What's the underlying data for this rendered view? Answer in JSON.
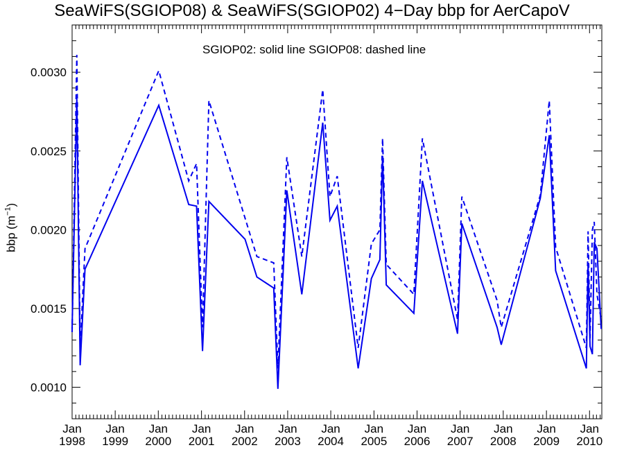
{
  "chart_data": {
    "type": "line",
    "title": "SeaWiFS(SGIOP08) & SeaWiFS(SGIOP02) 4−Day bbp for AerCapoV",
    "annotation": "SGIOP02: solid line   SGIOP08: dashed line",
    "ylabel_main": "bbp (m",
    "ylabel_sup": "−1",
    "ylabel_close": ")",
    "ylim": [
      0.0008,
      0.0033
    ],
    "xlim": [
      "1998-01-01",
      "2010-04-15"
    ],
    "yticks": [
      {
        "value": 0.001,
        "label": "0.0010"
      },
      {
        "value": 0.0015,
        "label": "0.0015"
      },
      {
        "value": 0.002,
        "label": "0.0020"
      },
      {
        "value": 0.0025,
        "label": "0.0025"
      },
      {
        "value": 0.003,
        "label": "0.0030"
      }
    ],
    "xticks": [
      {
        "date": "1998-01-01",
        "month": "Jan",
        "year": "1998"
      },
      {
        "date": "1999-01-01",
        "month": "Jan",
        "year": "1999"
      },
      {
        "date": "2000-01-01",
        "month": "Jan",
        "year": "2000"
      },
      {
        "date": "2001-01-01",
        "month": "Jan",
        "year": "2001"
      },
      {
        "date": "2002-01-01",
        "month": "Jan",
        "year": "2002"
      },
      {
        "date": "2003-01-01",
        "month": "Jan",
        "year": "2003"
      },
      {
        "date": "2004-01-01",
        "month": "Jan",
        "year": "2004"
      },
      {
        "date": "2005-01-01",
        "month": "Jan",
        "year": "2005"
      },
      {
        "date": "2006-01-01",
        "month": "Jan",
        "year": "2006"
      },
      {
        "date": "2007-01-01",
        "month": "Jan",
        "year": "2007"
      },
      {
        "date": "2008-01-01",
        "month": "Jan",
        "year": "2008"
      },
      {
        "date": "2009-01-01",
        "month": "Jan",
        "year": "2009"
      },
      {
        "date": "2010-01-01",
        "month": "Jan",
        "year": "2010"
      }
    ],
    "color": "#0000ee",
    "series": [
      {
        "style": "solid",
        "points": [
          [
            "1998-01-01",
            0.00137
          ],
          [
            "1998-02-10",
            0.00283
          ],
          [
            "1998-03-10",
            0.00114
          ],
          [
            "1998-04-20",
            0.00175
          ],
          [
            "2000-01-05",
            0.00279
          ],
          [
            "2000-09-15",
            0.00216
          ],
          [
            "2000-11-20",
            0.00215
          ],
          [
            "2001-01-10",
            0.00123
          ],
          [
            "2001-03-05",
            0.00218
          ],
          [
            "2002-01-05",
            0.00194
          ],
          [
            "2002-04-15",
            0.0017
          ],
          [
            "2002-09-05",
            0.00163
          ],
          [
            "2002-10-10",
            0.00099
          ],
          [
            "2002-12-25",
            0.00225
          ],
          [
            "2003-05-01",
            0.00159
          ],
          [
            "2003-10-25",
            0.00268
          ],
          [
            "2003-12-25",
            0.00206
          ],
          [
            "2004-02-25",
            0.00215
          ],
          [
            "2004-08-20",
            0.00112
          ],
          [
            "2004-12-10",
            0.00169
          ],
          [
            "2005-02-20",
            0.00181
          ],
          [
            "2005-03-15",
            0.00247
          ],
          [
            "2005-04-15",
            0.00165
          ],
          [
            "2005-12-05",
            0.00147
          ],
          [
            "2006-02-15",
            0.00231
          ],
          [
            "2006-12-10",
            0.00134
          ],
          [
            "2007-01-15",
            0.00204
          ],
          [
            "2007-11-10",
            0.00138
          ],
          [
            "2007-12-15",
            0.00127
          ],
          [
            "2008-11-10",
            0.0022
          ],
          [
            "2009-01-25",
            0.0026
          ],
          [
            "2009-03-20",
            0.00174
          ],
          [
            "2009-12-05",
            0.00112
          ],
          [
            "2009-12-20",
            0.00179
          ],
          [
            "2010-01-05",
            0.00126
          ],
          [
            "2010-01-25",
            0.00121
          ],
          [
            "2010-02-10",
            0.00192
          ],
          [
            "2010-03-05",
            0.00188
          ],
          [
            "2010-04-10",
            0.00137
          ]
        ]
      },
      {
        "style": "dashed",
        "points": [
          [
            "1998-01-01",
            0.00135
          ],
          [
            "1998-02-10",
            0.00311
          ],
          [
            "1998-03-10",
            0.00125
          ],
          [
            "1998-04-20",
            0.00188
          ],
          [
            "2000-01-05",
            0.00301
          ],
          [
            "2000-09-15",
            0.00231
          ],
          [
            "2000-11-20",
            0.00242
          ],
          [
            "2001-01-10",
            0.00138
          ],
          [
            "2001-03-05",
            0.00282
          ],
          [
            "2002-04-15",
            0.00183
          ],
          [
            "2002-09-05",
            0.00179
          ],
          [
            "2002-10-10",
            0.00112
          ],
          [
            "2002-12-25",
            0.00246
          ],
          [
            "2003-05-01",
            0.00183
          ],
          [
            "2003-10-25",
            0.00289
          ],
          [
            "2003-12-25",
            0.00221
          ],
          [
            "2004-02-25",
            0.00234
          ],
          [
            "2004-08-20",
            0.00125
          ],
          [
            "2004-12-10",
            0.00191
          ],
          [
            "2005-02-20",
            0.002
          ],
          [
            "2005-03-15",
            0.00258
          ],
          [
            "2005-04-15",
            0.00178
          ],
          [
            "2005-12-05",
            0.00159
          ],
          [
            "2006-02-15",
            0.00258
          ],
          [
            "2006-12-10",
            0.00143
          ],
          [
            "2007-01-15",
            0.00221
          ],
          [
            "2007-11-10",
            0.00155
          ],
          [
            "2007-12-15",
            0.00138
          ],
          [
            "2008-11-10",
            0.00222
          ],
          [
            "2009-01-25",
            0.00282
          ],
          [
            "2009-03-20",
            0.00189
          ],
          [
            "2009-12-05",
            0.00125
          ],
          [
            "2009-12-20",
            0.00199
          ],
          [
            "2010-01-05",
            0.00131
          ],
          [
            "2010-01-25",
            0.002
          ],
          [
            "2010-02-10",
            0.00205
          ],
          [
            "2010-03-05",
            0.00159
          ],
          [
            "2010-04-10",
            0.00143
          ]
        ]
      }
    ]
  }
}
